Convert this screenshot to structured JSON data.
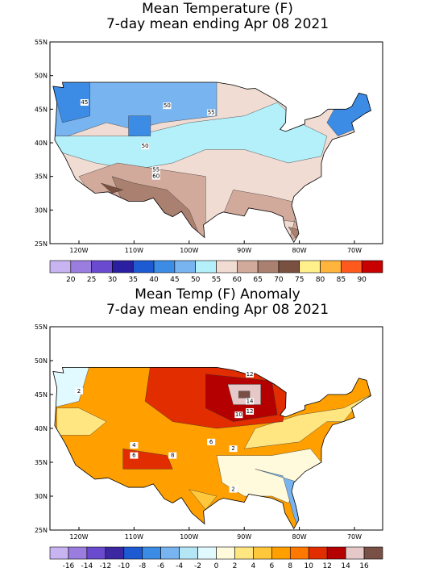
{
  "panels": [
    {
      "title": "Mean Temperature (F)",
      "subtitle": "7-day mean ending Apr 08 2021",
      "lat_labels": [
        "55N",
        "50N",
        "45N",
        "40N",
        "35N",
        "30N",
        "25N"
      ],
      "lon_labels": [
        "120W",
        "110W",
        "100W",
        "90W",
        "80W",
        "70W"
      ],
      "colorbar_labels": [
        20,
        25,
        30,
        35,
        40,
        45,
        50,
        55,
        60,
        65,
        70,
        75,
        80,
        85,
        90
      ],
      "colorbar_colors": [
        "#c8b4f0",
        "#9b7de0",
        "#6a4bd0",
        "#2a1fa0",
        "#1e5ad2",
        "#3c8ce6",
        "#78b4f0",
        "#b4f0fa",
        "#f0dcd2",
        "#d2aa9b",
        "#aa8070",
        "#7a5040",
        "#fff08c",
        "#ffb43c",
        "#ff5a1e",
        "#c80000"
      ],
      "contour_labels": [
        "45",
        "50",
        "55",
        "50",
        "55",
        "60"
      ]
    },
    {
      "title": "Mean Temp (F) Anomaly",
      "subtitle": "7-day mean ending Apr 08 2021",
      "lat_labels": [
        "55N",
        "50N",
        "45N",
        "40N",
        "35N",
        "30N",
        "25N"
      ],
      "lon_labels": [
        "120W",
        "110W",
        "100W",
        "90W",
        "80W",
        "70W"
      ],
      "colorbar_labels": [
        -16,
        -14,
        -12,
        -10,
        -8,
        -6,
        -4,
        -2,
        0,
        2,
        4,
        6,
        8,
        10,
        12,
        14,
        16
      ],
      "colorbar_colors": [
        "#c8b4f0",
        "#9b7de0",
        "#6a4bd0",
        "#3c28a0",
        "#1e5ad2",
        "#3c8ce6",
        "#78b4f0",
        "#b4e6f5",
        "#e1faff",
        "#fffadc",
        "#ffe680",
        "#ffc83c",
        "#ffa000",
        "#ff7800",
        "#e12d00",
        "#b40000",
        "#e6c8c8",
        "#785046"
      ],
      "contour_labels": [
        "2",
        "12",
        "14",
        "10",
        "12",
        "6",
        "4",
        "6",
        "8",
        "2",
        "2"
      ]
    }
  ]
}
